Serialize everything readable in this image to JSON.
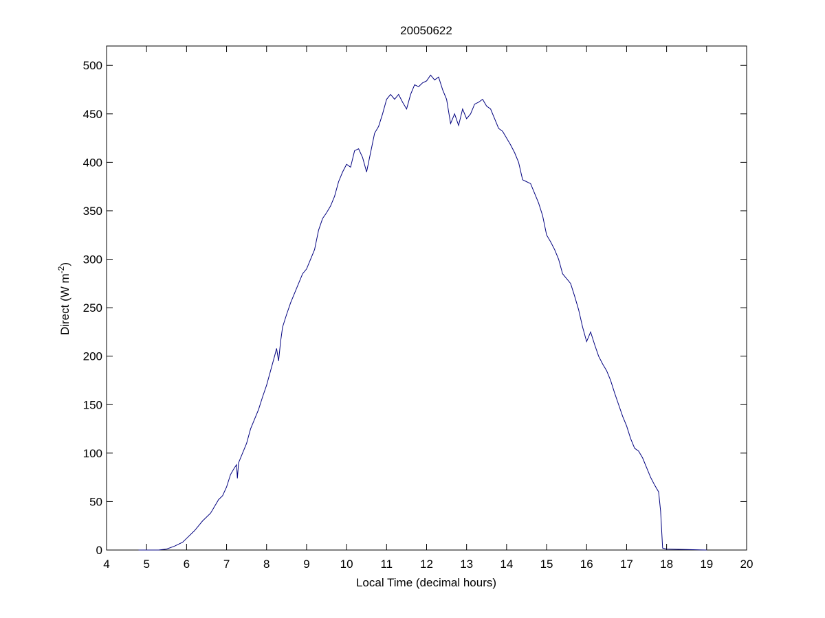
{
  "chart_data": {
    "type": "line",
    "title": "20050622",
    "xlabel": "Local Time (decimal hours)",
    "ylabel": {
      "text": "Direct (W m",
      "sup": "-2",
      "end": ")"
    },
    "xlim": [
      4,
      20
    ],
    "xticks": [
      4,
      5,
      6,
      7,
      8,
      9,
      10,
      11,
      12,
      13,
      14,
      15,
      16,
      17,
      18,
      19,
      20
    ],
    "ylim": [
      0,
      520
    ],
    "yticks": [
      0,
      50,
      100,
      150,
      200,
      250,
      300,
      350,
      400,
      450,
      500
    ],
    "grid": false,
    "series": [
      {
        "color": "#00007f",
        "x": [
          4.8,
          5.0,
          5.3,
          5.5,
          5.7,
          5.9,
          6.0,
          6.2,
          6.4,
          6.6,
          6.7,
          6.8,
          6.9,
          7.0,
          7.1,
          7.2,
          7.25,
          7.27,
          7.3,
          7.4,
          7.5,
          7.6,
          7.7,
          7.8,
          7.9,
          8.0,
          8.1,
          8.2,
          8.25,
          8.3,
          8.35,
          8.4,
          8.5,
          8.6,
          8.7,
          8.8,
          8.9,
          9.0,
          9.1,
          9.2,
          9.3,
          9.4,
          9.5,
          9.6,
          9.7,
          9.8,
          9.9,
          10.0,
          10.1,
          10.2,
          10.3,
          10.4,
          10.5,
          10.6,
          10.7,
          10.8,
          10.9,
          11.0,
          11.1,
          11.2,
          11.3,
          11.4,
          11.5,
          11.6,
          11.7,
          11.8,
          11.9,
          12.0,
          12.1,
          12.2,
          12.3,
          12.4,
          12.5,
          12.6,
          12.7,
          12.8,
          12.9,
          13.0,
          13.1,
          13.2,
          13.3,
          13.4,
          13.5,
          13.6,
          13.7,
          13.8,
          13.9,
          14.0,
          14.1,
          14.2,
          14.3,
          14.4,
          14.5,
          14.6,
          14.7,
          14.8,
          14.9,
          15.0,
          15.1,
          15.2,
          15.3,
          15.4,
          15.5,
          15.6,
          15.7,
          15.8,
          15.9,
          16.0,
          16.1,
          16.2,
          16.3,
          16.4,
          16.5,
          16.6,
          16.7,
          16.8,
          16.9,
          17.0,
          17.1,
          17.2,
          17.3,
          17.4,
          17.5,
          17.6,
          17.7,
          17.8,
          17.85,
          17.9,
          18.0,
          18.5,
          19.0
        ],
        "values": [
          0,
          0,
          0,
          1,
          4,
          8,
          12,
          20,
          30,
          38,
          45,
          52,
          56,
          65,
          78,
          85,
          88,
          74,
          90,
          100,
          110,
          125,
          135,
          145,
          158,
          170,
          185,
          200,
          208,
          195,
          215,
          230,
          243,
          255,
          265,
          275,
          285,
          290,
          300,
          310,
          330,
          342,
          348,
          355,
          365,
          380,
          390,
          398,
          395,
          412,
          414,
          405,
          390,
          410,
          430,
          437,
          450,
          465,
          470,
          465,
          470,
          462,
          455,
          470,
          480,
          478,
          482,
          484,
          490,
          485,
          488,
          475,
          465,
          440,
          450,
          438,
          455,
          445,
          450,
          460,
          462,
          465,
          458,
          455,
          445,
          435,
          432,
          425,
          418,
          410,
          400,
          382,
          380,
          378,
          368,
          358,
          345,
          325,
          318,
          310,
          300,
          285,
          280,
          275,
          262,
          248,
          230,
          215,
          225,
          212,
          200,
          192,
          185,
          175,
          162,
          150,
          138,
          128,
          115,
          105,
          102,
          95,
          85,
          75,
          67,
          60,
          40,
          2,
          1,
          0.5,
          0
        ]
      }
    ]
  }
}
